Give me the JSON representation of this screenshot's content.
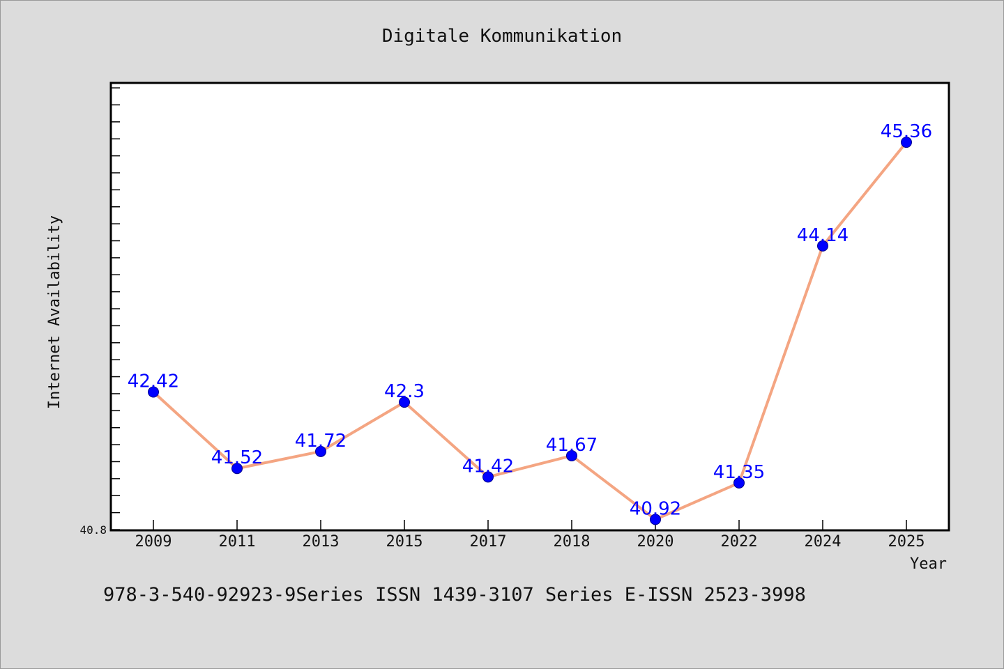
{
  "chart_data": {
    "type": "line",
    "title": "Digitale Kommunikation",
    "xlabel": "Year",
    "ylabel": "Internet Availability",
    "categories": [
      "2009",
      "2011",
      "2013",
      "2015",
      "2017",
      "2018",
      "2020",
      "2022",
      "2024",
      "2025"
    ],
    "series": [
      {
        "values": [
          42.42,
          41.52,
          41.72,
          42.3,
          41.42,
          41.67,
          40.92,
          41.35,
          44.14,
          45.36
        ],
        "labels": [
          "42.42",
          "41.52",
          "41.72",
          "42.3",
          "41.42",
          "41.67",
          "40.92",
          "41.35",
          "44.14",
          "45.36"
        ]
      }
    ],
    "ylim": [
      40.8,
      46.05
    ],
    "y_min_label": "40.8",
    "grid": false,
    "line_color": "#f4a582",
    "marker_color": "#0000ff",
    "label_color": "#0000ff"
  },
  "footer": "978-3-540-92923-9Series ISSN 1439-3107 Series E-ISSN 2523-3998"
}
